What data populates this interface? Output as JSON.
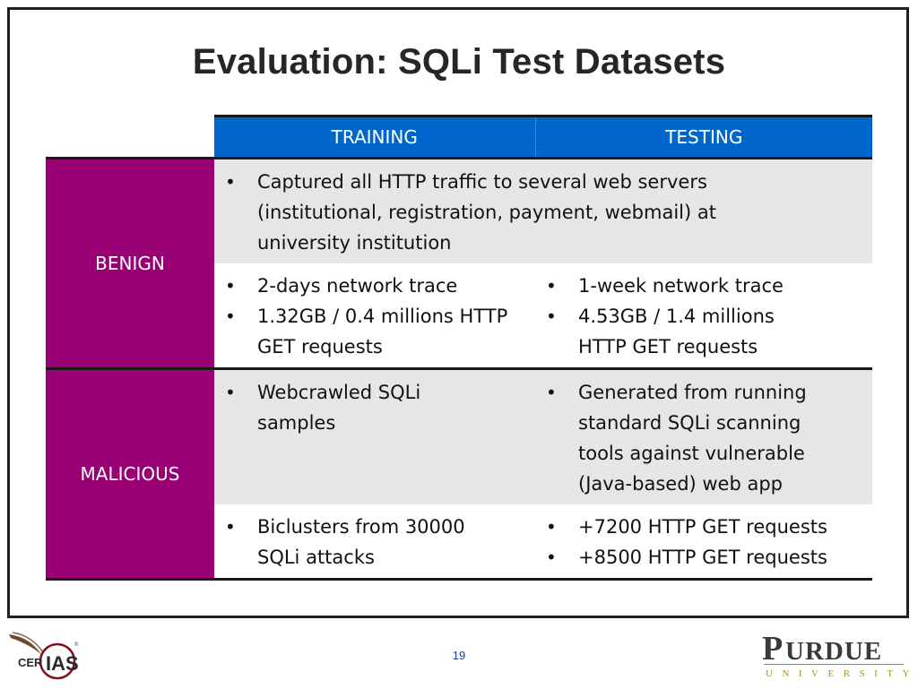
{
  "slide": {
    "title": "Evaluation: SQLi Test Datasets",
    "page_number": "19"
  },
  "table": {
    "columns": [
      "TRAINING",
      "TESTING"
    ],
    "benign": {
      "label": "BENIGN",
      "shared": [
        "Captured all HTTP traffic to several web servers (institutional, registration, payment, webmail) at university institution"
      ],
      "training": [
        "2-days network trace",
        "1.32GB / 0.4 millions HTTP GET requests"
      ],
      "testing": [
        "1-week network trace",
        "4.53GB / 1.4 millions HTTP GET requests"
      ]
    },
    "malicious": {
      "label": "MALICIOUS",
      "training_a": [
        "Webcrawled SQLi samples"
      ],
      "testing_a": [
        "Generated from running standard SQLi scanning tools against vulnerable (Java-based) web app"
      ],
      "training_b": [
        "Biclusters from 30000 SQLi attacks"
      ],
      "testing_b": [
        "+7200 HTTP GET requests",
        "+8500 HTTP GET requests"
      ]
    }
  },
  "logos": {
    "left": "CERIAS",
    "right_main": "PURDUE",
    "right_sub": "UNIVERSITY"
  },
  "colors": {
    "header_blue": "#0066cc",
    "row_label_purple": "#990073",
    "gray_row": "#e6e6e6"
  }
}
